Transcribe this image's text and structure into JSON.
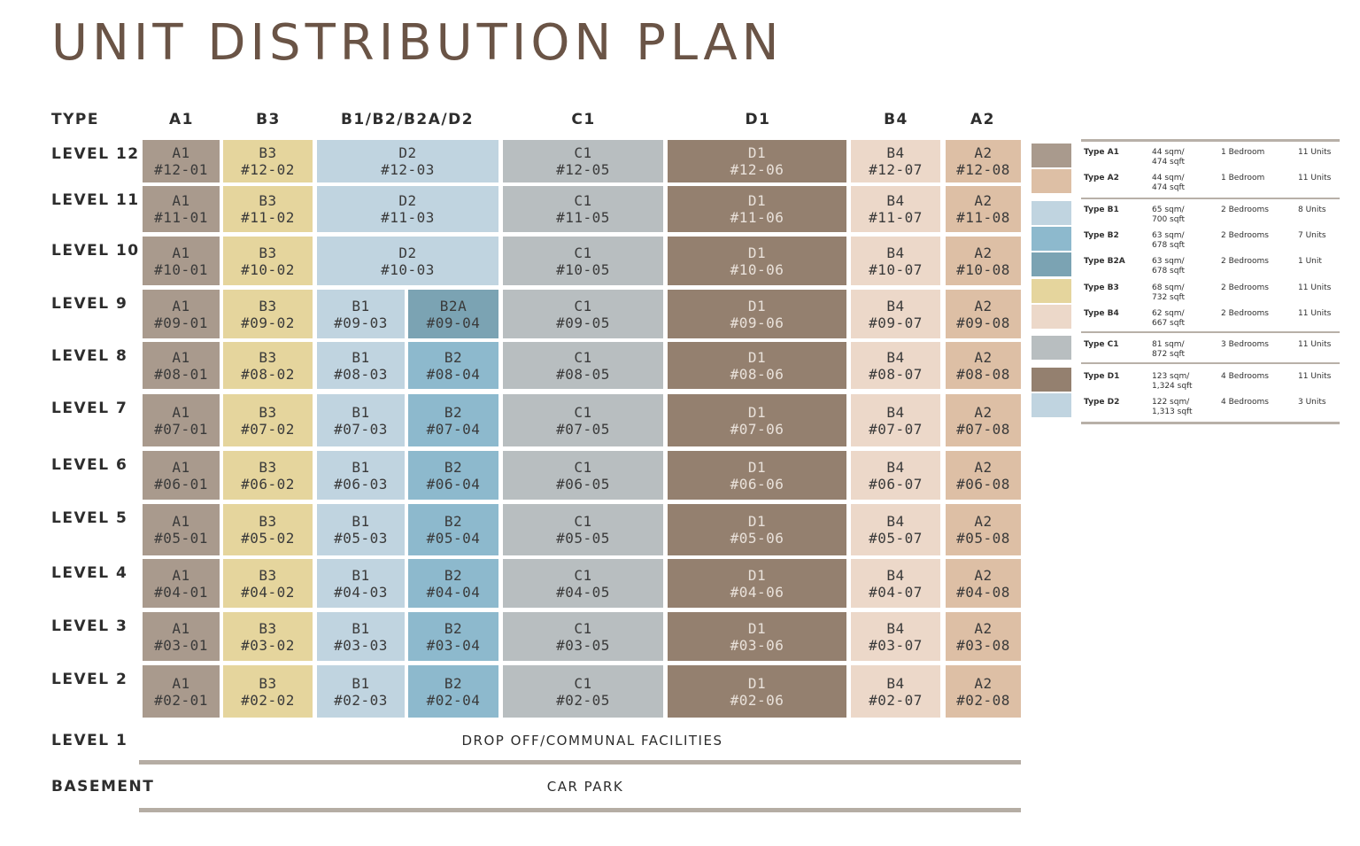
{
  "title": "UNIT DISTRIBUTION PLAN",
  "type_label": "TYPE",
  "colors": {
    "A1": "#a99a8d",
    "A2": "#ddbfa5",
    "B1": "#c0d4e0",
    "B2": "#8db9cd",
    "B2A": "#7ba3b3",
    "B3": "#e5d59d",
    "B4": "#ecd8c9",
    "C1": "#b8bec0",
    "D1": "#94806f",
    "D2": "#c0d4e0"
  },
  "column_headers": [
    "A1",
    "B3",
    "B1/B2/B2A/D2",
    "C1",
    "D1",
    "B4",
    "A2"
  ],
  "levels": [
    {
      "label": "LEVEL 12",
      "units": [
        {
          "type": "A1",
          "no": "#12-01"
        },
        {
          "type": "B3",
          "no": "#12-02"
        },
        {
          "type": "D2",
          "no": "#12-03"
        },
        {
          "type": "C1",
          "no": "#12-05"
        },
        {
          "type": "D1",
          "no": "#12-06"
        },
        {
          "type": "B4",
          "no": "#12-07"
        },
        {
          "type": "A2",
          "no": "#12-08"
        }
      ]
    },
    {
      "label": "LEVEL 11",
      "units": [
        {
          "type": "A1",
          "no": "#11-01"
        },
        {
          "type": "B3",
          "no": "#11-02"
        },
        {
          "type": "D2",
          "no": "#11-03"
        },
        {
          "type": "C1",
          "no": "#11-05"
        },
        {
          "type": "D1",
          "no": "#11-06"
        },
        {
          "type": "B4",
          "no": "#11-07"
        },
        {
          "type": "A2",
          "no": "#11-08"
        }
      ]
    },
    {
      "label": "LEVEL 10",
      "units": [
        {
          "type": "A1",
          "no": "#10-01"
        },
        {
          "type": "B3",
          "no": "#10-02"
        },
        {
          "type": "D2",
          "no": "#10-03"
        },
        {
          "type": "C1",
          "no": "#10-05"
        },
        {
          "type": "D1",
          "no": "#10-06"
        },
        {
          "type": "B4",
          "no": "#10-07"
        },
        {
          "type": "A2",
          "no": "#10-08"
        }
      ]
    },
    {
      "label": "LEVEL 9",
      "units": [
        {
          "type": "A1",
          "no": "#09-01"
        },
        {
          "type": "B3",
          "no": "#09-02"
        },
        {
          "type": "B1",
          "no": "#09-03"
        },
        {
          "type": "B2A",
          "no": "#09-04"
        },
        {
          "type": "C1",
          "no": "#09-05"
        },
        {
          "type": "D1",
          "no": "#09-06"
        },
        {
          "type": "B4",
          "no": "#09-07"
        },
        {
          "type": "A2",
          "no": "#09-08"
        }
      ]
    },
    {
      "label": "LEVEL 8",
      "units": [
        {
          "type": "A1",
          "no": "#08-01"
        },
        {
          "type": "B3",
          "no": "#08-02"
        },
        {
          "type": "B1",
          "no": "#08-03"
        },
        {
          "type": "B2",
          "no": "#08-04"
        },
        {
          "type": "C1",
          "no": "#08-05"
        },
        {
          "type": "D1",
          "no": "#08-06"
        },
        {
          "type": "B4",
          "no": "#08-07"
        },
        {
          "type": "A2",
          "no": "#08-08"
        }
      ]
    },
    {
      "label": "LEVEL 7",
      "units": [
        {
          "type": "A1",
          "no": "#07-01"
        },
        {
          "type": "B3",
          "no": "#07-02"
        },
        {
          "type": "B1",
          "no": "#07-03"
        },
        {
          "type": "B2",
          "no": "#07-04"
        },
        {
          "type": "C1",
          "no": "#07-05"
        },
        {
          "type": "D1",
          "no": "#07-06"
        },
        {
          "type": "B4",
          "no": "#07-07"
        },
        {
          "type": "A2",
          "no": "#07-08"
        }
      ]
    },
    {
      "label": "LEVEL 6",
      "units": [
        {
          "type": "A1",
          "no": "#06-01"
        },
        {
          "type": "B3",
          "no": "#06-02"
        },
        {
          "type": "B1",
          "no": "#06-03"
        },
        {
          "type": "B2",
          "no": "#06-04"
        },
        {
          "type": "C1",
          "no": "#06-05"
        },
        {
          "type": "D1",
          "no": "#06-06"
        },
        {
          "type": "B4",
          "no": "#06-07"
        },
        {
          "type": "A2",
          "no": "#06-08"
        }
      ]
    },
    {
      "label": "LEVEL 5",
      "units": [
        {
          "type": "A1",
          "no": "#05-01"
        },
        {
          "type": "B3",
          "no": "#05-02"
        },
        {
          "type": "B1",
          "no": "#05-03"
        },
        {
          "type": "B2",
          "no": "#05-04"
        },
        {
          "type": "C1",
          "no": "#05-05"
        },
        {
          "type": "D1",
          "no": "#05-06"
        },
        {
          "type": "B4",
          "no": "#05-07"
        },
        {
          "type": "A2",
          "no": "#05-08"
        }
      ]
    },
    {
      "label": "LEVEL 4",
      "units": [
        {
          "type": "A1",
          "no": "#04-01"
        },
        {
          "type": "B3",
          "no": "#04-02"
        },
        {
          "type": "B1",
          "no": "#04-03"
        },
        {
          "type": "B2",
          "no": "#04-04"
        },
        {
          "type": "C1",
          "no": "#04-05"
        },
        {
          "type": "D1",
          "no": "#04-06"
        },
        {
          "type": "B4",
          "no": "#04-07"
        },
        {
          "type": "A2",
          "no": "#04-08"
        }
      ]
    },
    {
      "label": "LEVEL 3",
      "units": [
        {
          "type": "A1",
          "no": "#03-01"
        },
        {
          "type": "B3",
          "no": "#03-02"
        },
        {
          "type": "B1",
          "no": "#03-03"
        },
        {
          "type": "B2",
          "no": "#03-04"
        },
        {
          "type": "C1",
          "no": "#03-05"
        },
        {
          "type": "D1",
          "no": "#03-06"
        },
        {
          "type": "B4",
          "no": "#03-07"
        },
        {
          "type": "A2",
          "no": "#03-08"
        }
      ]
    },
    {
      "label": "LEVEL 2",
      "units": [
        {
          "type": "A1",
          "no": "#02-01"
        },
        {
          "type": "B3",
          "no": "#02-02"
        },
        {
          "type": "B1",
          "no": "#02-03"
        },
        {
          "type": "B2",
          "no": "#02-04"
        },
        {
          "type": "C1",
          "no": "#02-05"
        },
        {
          "type": "D1",
          "no": "#02-06"
        },
        {
          "type": "B4",
          "no": "#02-07"
        },
        {
          "type": "A2",
          "no": "#02-08"
        }
      ]
    }
  ],
  "level1": {
    "label": "LEVEL 1",
    "text": "DROP OFF/COMMUNAL FACILITIES"
  },
  "basement": {
    "label": "BASEMENT",
    "text": "CAR PARK"
  },
  "legend": [
    {
      "type": "A1",
      "name": "Type A1",
      "area1": "44 sqm/",
      "area2": "474 sqft",
      "bedrooms": "1 Bedroom",
      "units": "11 Units"
    },
    {
      "type": "A2",
      "name": "Type A2",
      "area1": "44 sqm/",
      "area2": "474 sqft",
      "bedrooms": "1 Bedroom",
      "units": "11 Units"
    },
    {
      "type": "B1",
      "name": "Type B1",
      "area1": "65 sqm/",
      "area2": "700 sqft",
      "bedrooms": "2 Bedrooms",
      "units": "8 Units"
    },
    {
      "type": "B2",
      "name": "Type B2",
      "area1": "63 sqm/",
      "area2": "678 sqft",
      "bedrooms": "2 Bedrooms",
      "units": "7 Units"
    },
    {
      "type": "B2A",
      "name": "Type B2A",
      "area1": "63 sqm/",
      "area2": "678 sqft",
      "bedrooms": "2 Bedrooms",
      "units": "1 Unit"
    },
    {
      "type": "B3",
      "name": "Type B3",
      "area1": "68 sqm/",
      "area2": "732 sqft",
      "bedrooms": "2 Bedrooms",
      "units": "11 Units"
    },
    {
      "type": "B4",
      "name": "Type B4",
      "area1": "62 sqm/",
      "area2": "667 sqft",
      "bedrooms": "2 Bedrooms",
      "units": "11 Units"
    },
    {
      "type": "C1",
      "name": "Type C1",
      "area1": "81 sqm/",
      "area2": "872 sqft",
      "bedrooms": "3 Bedrooms",
      "units": "11 Units"
    },
    {
      "type": "D1",
      "name": "Type D1",
      "area1": "123 sqm/",
      "area2": "1,324 sqft",
      "bedrooms": "4 Bedrooms",
      "units": "11 Units"
    },
    {
      "type": "D2",
      "name": "Type D2",
      "area1": "122 sqm/",
      "area2": "1,313 sqft",
      "bedrooms": "4 Bedrooms",
      "units": "3 Units"
    }
  ]
}
